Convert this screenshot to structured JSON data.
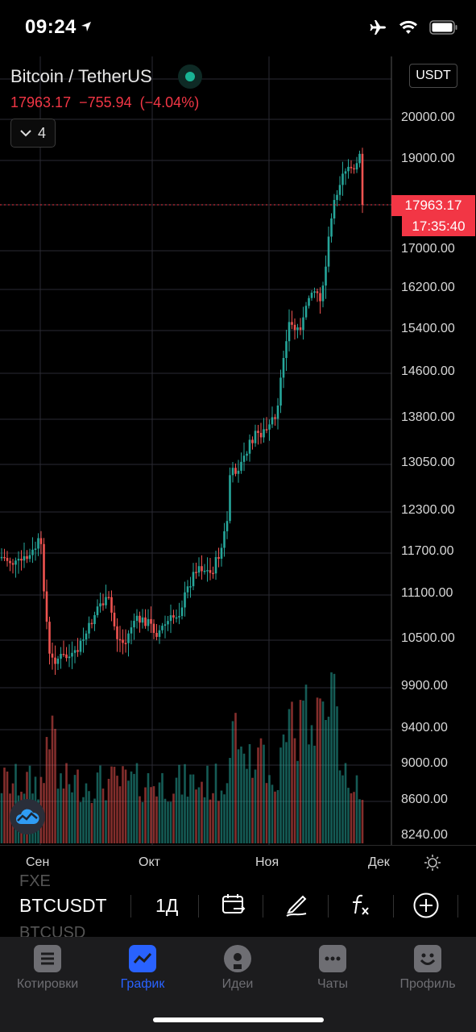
{
  "status_bar": {
    "time": "09:24"
  },
  "instrument": {
    "name": "Bitcoin / TetherUS",
    "last": "17963.17",
    "change": "−755.94",
    "change_pct": "(−4.04%)",
    "indicators_count": "4",
    "currency": "USDT",
    "price_tag": "17963.17",
    "countdown": "17:35:40"
  },
  "price_axis": [
    "20000.00",
    "19000.00",
    "17000.00",
    "16200.00",
    "15400.00",
    "14600.00",
    "13800.00",
    "13050.00",
    "12300.00",
    "11700.00",
    "11100.00",
    "10500.00",
    "9900.00",
    "9400.00",
    "9000.00",
    "8600.00",
    "8240.00"
  ],
  "time_axis": [
    "Сен",
    "Окт",
    "Ноя",
    "Дек"
  ],
  "toolbar": {
    "symbol": "BTCUSDT",
    "interval": "1Д",
    "ghost_above": "FXE",
    "ghost_below": "BTCUSD"
  },
  "tabs": [
    {
      "label": "Котировки",
      "icon": "quotes-icon"
    },
    {
      "label": "График",
      "icon": "chart-icon",
      "active": true
    },
    {
      "label": "Идеи",
      "icon": "ideas-icon"
    },
    {
      "label": "Чаты",
      "icon": "chats-icon"
    },
    {
      "label": "Профиль",
      "icon": "profile-icon"
    }
  ],
  "colors": {
    "up": "#26a69a",
    "down": "#ef5350",
    "accent": "#2962ff",
    "alert": "#f23645"
  }
}
